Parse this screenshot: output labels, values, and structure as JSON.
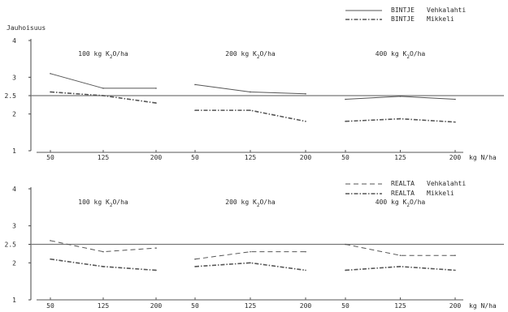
{
  "chart_data": {
    "type": "line",
    "y_title": "Jauhoisuus",
    "x_unit": "kg N/ha",
    "x_ticks": [
      "50",
      "125",
      "200"
    ],
    "y_ticks": [
      "1",
      "2",
      "2.5",
      "3",
      "4"
    ],
    "ylim": [
      1,
      4
    ],
    "reference_line": 2.5,
    "grid": false,
    "panels": [
      {
        "position": "top",
        "legend": [
          {
            "cultivar": "BINTJE",
            "location": "Vehkalahti",
            "style": "solid"
          },
          {
            "cultivar": "BINTJE",
            "location": "Mikkeli",
            "style": "dash-dot"
          }
        ],
        "groups": [
          {
            "label_pre": "100 kg K",
            "label_sub": "2",
            "label_post": "O/ha",
            "x": [
              50,
              125,
              200
            ],
            "series": [
              {
                "name": "BINTJE Vehkalahti",
                "values": [
                  3.1,
                  2.7,
                  2.7
                ]
              },
              {
                "name": "BINTJE Mikkeli",
                "values": [
                  2.6,
                  2.5,
                  2.3
                ]
              }
            ]
          },
          {
            "label_pre": "200 kg K",
            "label_sub": "2",
            "label_post": "O/ha",
            "x": [
              50,
              125,
              200
            ],
            "series": [
              {
                "name": "BINTJE Vehkalahti",
                "values": [
                  2.8,
                  2.6,
                  2.55
                ]
              },
              {
                "name": "BINTJE Mikkeli",
                "values": [
                  2.1,
                  2.1,
                  1.8
                ]
              }
            ]
          },
          {
            "label_pre": "400 kg K",
            "label_sub": "2",
            "label_post": "O/ha",
            "x": [
              50,
              125,
              200
            ],
            "series": [
              {
                "name": "BINTJE Vehkalahti",
                "values": [
                  2.4,
                  2.48,
                  2.4
                ]
              },
              {
                "name": "BINTJE Mikkeli",
                "values": [
                  1.8,
                  1.87,
                  1.78
                ]
              }
            ]
          }
        ]
      },
      {
        "position": "bottom",
        "legend": [
          {
            "cultivar": "REALTA",
            "location": "Vehkalahti",
            "style": "dashed"
          },
          {
            "cultivar": "REALTA",
            "location": "Mikkeli",
            "style": "dash-dot"
          }
        ],
        "groups": [
          {
            "label_pre": "100 kg K",
            "label_sub": "2",
            "label_post": "O/ha",
            "x": [
              50,
              125,
              200
            ],
            "series": [
              {
                "name": "REALTA Vehkalahti",
                "values": [
                  2.6,
                  2.3,
                  2.4
                ]
              },
              {
                "name": "REALTA Mikkeli",
                "values": [
                  2.1,
                  1.9,
                  1.8
                ]
              }
            ]
          },
          {
            "label_pre": "200 kg K",
            "label_sub": "2",
            "label_post": "O/ha",
            "x": [
              50,
              125,
              200
            ],
            "series": [
              {
                "name": "REALTA Vehkalahti",
                "values": [
                  2.1,
                  2.3,
                  2.3
                ]
              },
              {
                "name": "REALTA Mikkeli",
                "values": [
                  1.9,
                  2.0,
                  1.8
                ]
              }
            ]
          },
          {
            "label_pre": "400 kg K",
            "label_sub": "2",
            "label_post": "O/ha",
            "x": [
              50,
              125,
              200
            ],
            "series": [
              {
                "name": "REALTA Vehkalahti",
                "values": [
                  2.5,
                  2.2,
                  2.2
                ]
              },
              {
                "name": "REALTA Mikkeli",
                "values": [
                  1.8,
                  1.9,
                  1.8
                ]
              }
            ]
          }
        ]
      }
    ]
  }
}
